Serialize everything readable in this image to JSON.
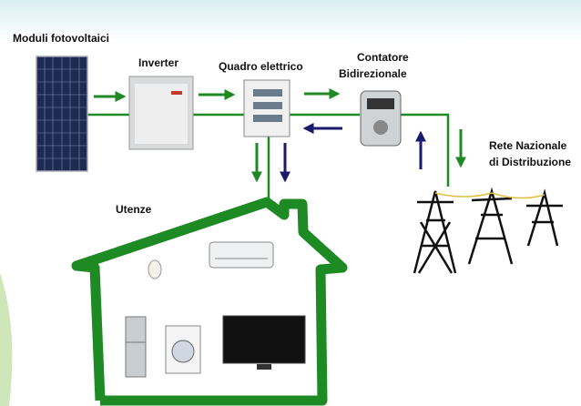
{
  "nodes": [
    {
      "label": [
        "Moduli fotovoltaici"
      ]
    },
    {
      "label": [
        "Inverter"
      ]
    },
    {
      "label": [
        "Quadro elettrico"
      ]
    },
    {
      "label": [
        "Contatore",
        "Bidirezionale"
      ]
    },
    {
      "label": [
        "Rete Nazionale",
        "di Distribuzione"
      ]
    },
    {
      "label": [
        "Utenze"
      ]
    }
  ]
}
